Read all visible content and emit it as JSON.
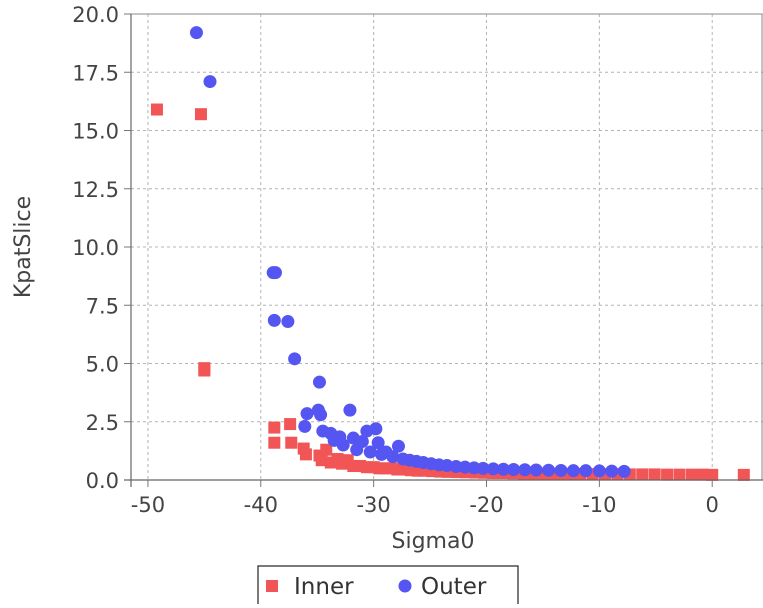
{
  "chart_data": {
    "type": "scatter",
    "xlabel": "Sigma0",
    "ylabel": "KpatSlice",
    "xlim": [
      -51.5,
      4.5
    ],
    "ylim": [
      0,
      20
    ],
    "x_ticks": [
      -50,
      -40,
      -30,
      -20,
      -10,
      0
    ],
    "x_tick_labels": [
      "-50",
      "-40",
      "-30",
      "-20",
      "-10",
      "0"
    ],
    "y_ticks": [
      0,
      2.5,
      5,
      7.5,
      10,
      12.5,
      15,
      17.5,
      20
    ],
    "y_tick_labels": [
      "0.0",
      "2.5",
      "5.0",
      "7.5",
      "10.0",
      "12.5",
      "15.0",
      "17.5",
      "20.0"
    ],
    "grid": true,
    "legend_position": "bottom",
    "series": [
      {
        "name": "Inner",
        "marker": "square",
        "color": "#f25555",
        "points": [
          [
            -49.2,
            15.9
          ],
          [
            -45.3,
            15.7
          ],
          [
            -45.0,
            4.8
          ],
          [
            -45.0,
            4.7
          ],
          [
            -38.8,
            2.25
          ],
          [
            -38.8,
            1.6
          ],
          [
            -37.4,
            2.4
          ],
          [
            -37.3,
            1.6
          ],
          [
            -36.2,
            1.35
          ],
          [
            -36.0,
            1.1
          ],
          [
            -34.8,
            1.05
          ],
          [
            -34.6,
            0.85
          ],
          [
            -34.2,
            1.3
          ],
          [
            -33.8,
            0.75
          ],
          [
            -33.2,
            0.9
          ],
          [
            -32.8,
            0.7
          ],
          [
            -32.3,
            0.85
          ],
          [
            -31.8,
            0.6
          ],
          [
            -31.2,
            0.6
          ],
          [
            -30.6,
            0.55
          ],
          [
            -30.0,
            0.55
          ],
          [
            -29.5,
            0.5
          ],
          [
            -29.0,
            0.5
          ],
          [
            -28.4,
            0.5
          ],
          [
            -27.9,
            0.45
          ],
          [
            -27.3,
            0.45
          ],
          [
            -26.7,
            0.42
          ],
          [
            -26.1,
            0.4
          ],
          [
            -25.5,
            0.4
          ],
          [
            -24.8,
            0.38
          ],
          [
            -24.1,
            0.36
          ],
          [
            -23.4,
            0.35
          ],
          [
            -22.6,
            0.34
          ],
          [
            -21.8,
            0.33
          ],
          [
            -21.0,
            0.32
          ],
          [
            -20.2,
            0.31
          ],
          [
            -19.4,
            0.3
          ],
          [
            -18.5,
            0.3
          ],
          [
            -17.6,
            0.29
          ],
          [
            -16.7,
            0.28
          ],
          [
            -15.7,
            0.28
          ],
          [
            -14.7,
            0.27
          ],
          [
            -13.7,
            0.27
          ],
          [
            -12.7,
            0.26
          ],
          [
            -11.7,
            0.26
          ],
          [
            -10.6,
            0.25
          ],
          [
            -9.5,
            0.25
          ],
          [
            -8.4,
            0.25
          ],
          [
            -7.3,
            0.24
          ],
          [
            -6.2,
            0.24
          ],
          [
            -5.1,
            0.24
          ],
          [
            -4.0,
            0.23
          ],
          [
            -2.9,
            0.23
          ],
          [
            -1.8,
            0.23
          ],
          [
            -0.8,
            0.23
          ],
          [
            0.0,
            0.22
          ],
          [
            2.8,
            0.22
          ]
        ]
      },
      {
        "name": "Outer",
        "marker": "circle",
        "color": "#5555f2",
        "points": [
          [
            -45.7,
            19.2
          ],
          [
            -44.5,
            17.1
          ],
          [
            -38.9,
            8.9
          ],
          [
            -38.7,
            8.9
          ],
          [
            -38.8,
            6.85
          ],
          [
            -37.6,
            6.8
          ],
          [
            -37.0,
            5.2
          ],
          [
            -35.9,
            2.85
          ],
          [
            -36.1,
            2.3
          ],
          [
            -34.8,
            4.2
          ],
          [
            -34.9,
            3.0
          ],
          [
            -34.7,
            2.8
          ],
          [
            -34.5,
            2.1
          ],
          [
            -33.8,
            2.0
          ],
          [
            -33.5,
            1.7
          ],
          [
            -33.0,
            1.85
          ],
          [
            -32.7,
            1.5
          ],
          [
            -32.1,
            3.0
          ],
          [
            -31.8,
            1.8
          ],
          [
            -31.5,
            1.3
          ],
          [
            -31.0,
            1.65
          ],
          [
            -30.6,
            2.1
          ],
          [
            -30.3,
            1.2
          ],
          [
            -29.8,
            2.2
          ],
          [
            -29.6,
            1.6
          ],
          [
            -29.3,
            1.1
          ],
          [
            -28.9,
            1.2
          ],
          [
            -28.3,
            1.0
          ],
          [
            -27.8,
            1.45
          ],
          [
            -27.4,
            0.9
          ],
          [
            -26.8,
            0.85
          ],
          [
            -26.2,
            0.8
          ],
          [
            -25.6,
            0.75
          ],
          [
            -24.9,
            0.7
          ],
          [
            -24.2,
            0.65
          ],
          [
            -23.5,
            0.62
          ],
          [
            -22.7,
            0.58
          ],
          [
            -21.9,
            0.55
          ],
          [
            -21.1,
            0.52
          ],
          [
            -20.3,
            0.5
          ],
          [
            -19.4,
            0.48
          ],
          [
            -18.5,
            0.46
          ],
          [
            -17.6,
            0.45
          ],
          [
            -16.6,
            0.44
          ],
          [
            -15.6,
            0.43
          ],
          [
            -14.5,
            0.42
          ],
          [
            -13.4,
            0.41
          ],
          [
            -12.3,
            0.4
          ],
          [
            -11.2,
            0.4
          ],
          [
            -10.0,
            0.39
          ],
          [
            -8.9,
            0.38
          ],
          [
            -7.8,
            0.37
          ]
        ]
      }
    ]
  }
}
